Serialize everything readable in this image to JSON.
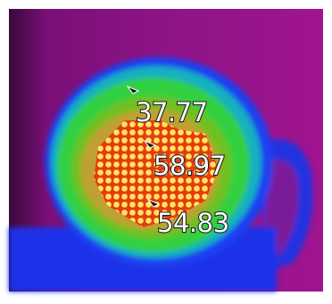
{
  "readings": [
    {
      "label": "37.77"
    },
    {
      "label": "58.97"
    },
    {
      "label": "54.83"
    }
  ]
}
